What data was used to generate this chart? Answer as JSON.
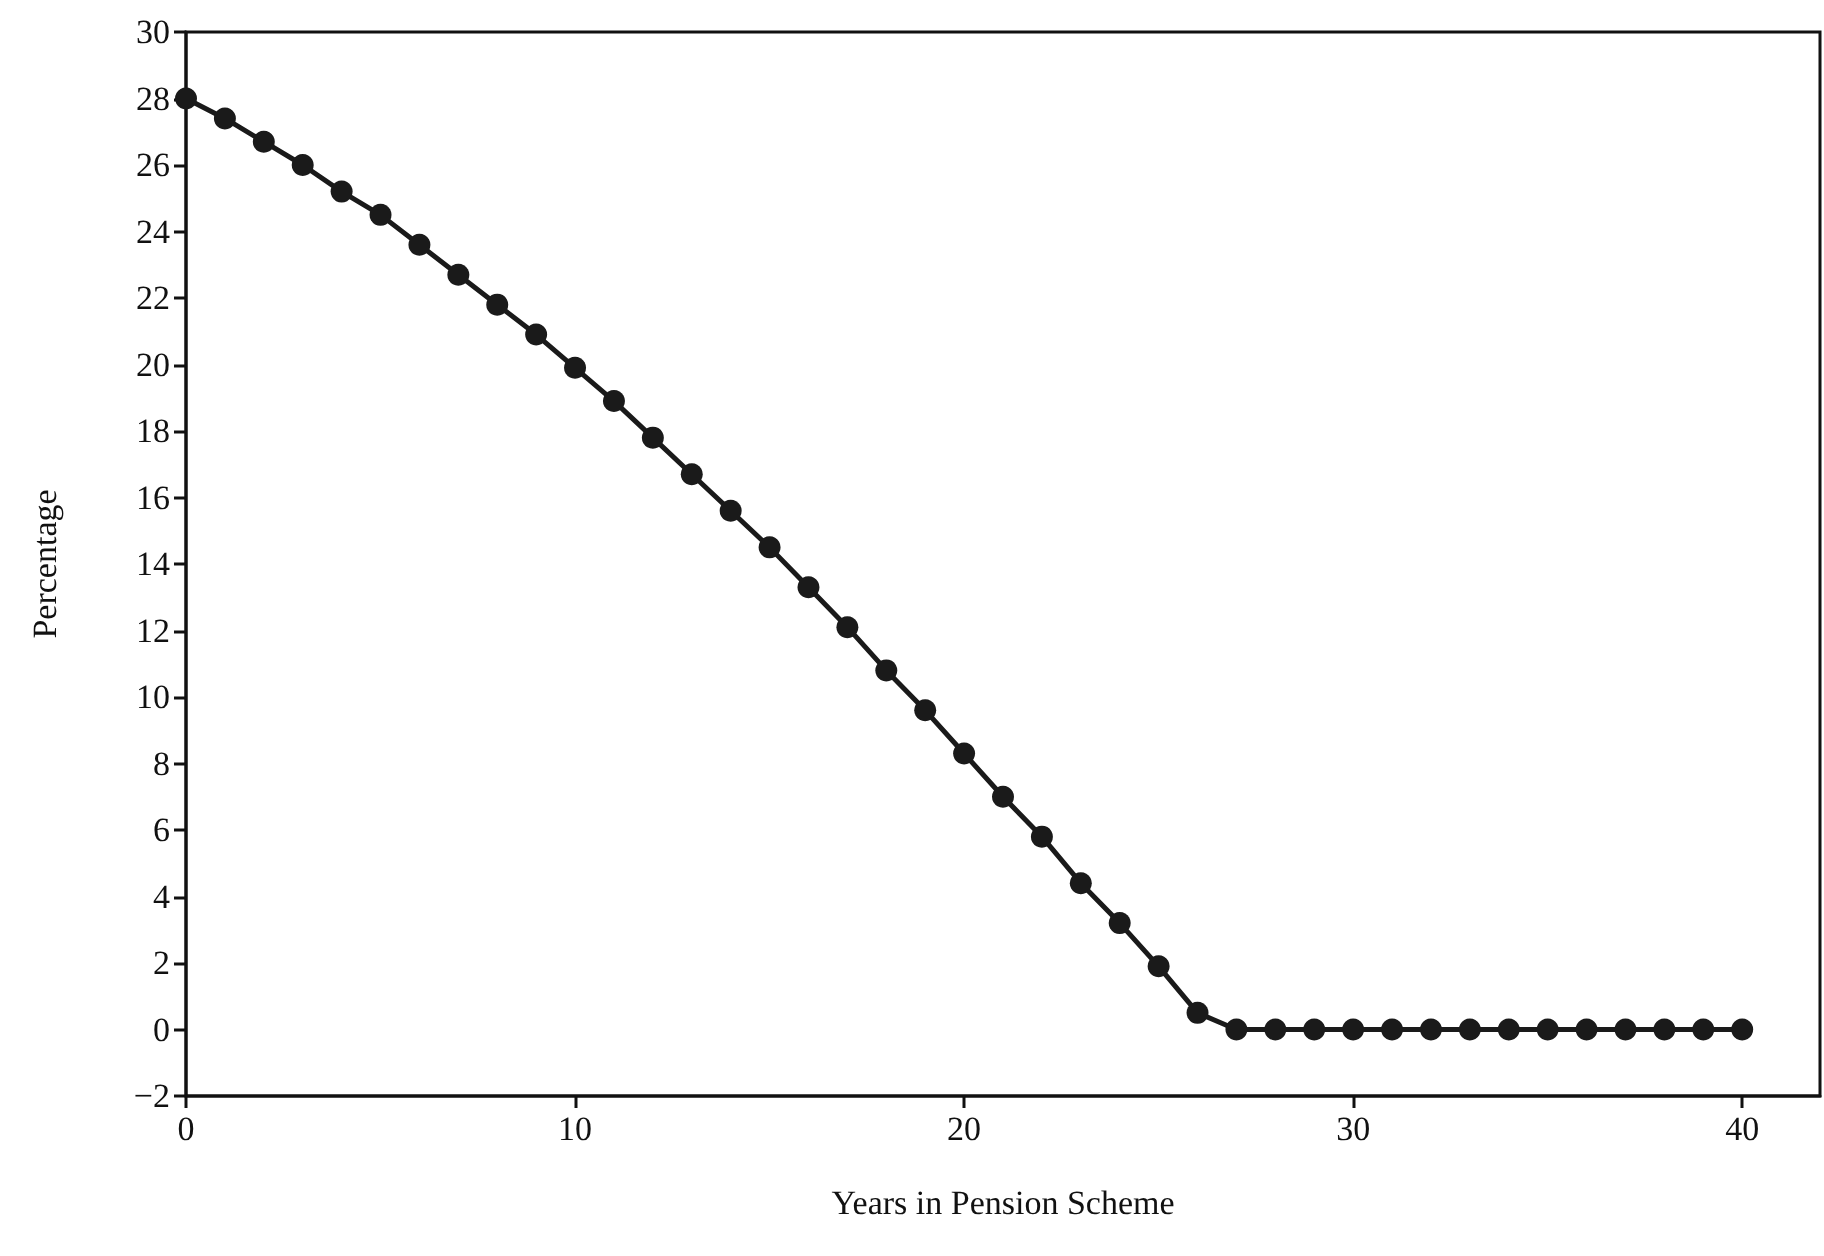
{
  "chart_data": {
    "type": "line",
    "xlabel": "Years in Pension Scheme",
    "ylabel": "Percentage",
    "x": [
      0,
      1,
      2,
      3,
      4,
      5,
      6,
      7,
      8,
      9,
      10,
      11,
      12,
      13,
      14,
      15,
      16,
      17,
      18,
      19,
      20,
      21,
      22,
      23,
      24,
      25,
      26,
      27,
      28,
      29,
      30,
      31,
      32,
      33,
      34,
      35,
      36,
      37,
      38,
      39,
      40
    ],
    "series": [
      {
        "color": "#1a1a1a",
        "values": [
          28,
          27.4,
          26.7,
          26.0,
          25.2,
          24.5,
          23.6,
          22.7,
          21.8,
          20.9,
          19.9,
          18.9,
          17.8,
          16.7,
          15.6,
          14.5,
          13.3,
          12.1,
          10.8,
          9.6,
          8.3,
          7.0,
          5.8,
          4.4,
          3.2,
          1.9,
          0.5,
          0,
          0,
          0,
          0,
          0,
          0,
          0,
          0,
          0,
          0,
          0,
          0,
          0,
          0
        ]
      }
    ],
    "xlim": [
      0,
      42
    ],
    "xticks": [
      0,
      10,
      20,
      30,
      40
    ],
    "ylim": [
      -2,
      30
    ],
    "yticks": [
      {
        "value": -2,
        "label": "−2"
      },
      0,
      2,
      4,
      6,
      8,
      10,
      12,
      14,
      16,
      18,
      20,
      22,
      24,
      26,
      28,
      30
    ],
    "grid": false,
    "marker": "circle",
    "line_style": "solid"
  }
}
